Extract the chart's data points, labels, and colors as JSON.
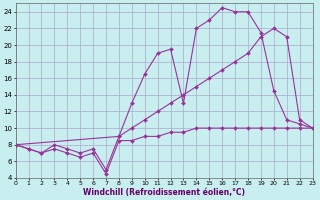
{
  "xlabel": "Windchill (Refroidissement éolien,°C)",
  "bg_color": "#c8eef0",
  "grid_color": "#aaaacc",
  "line_color": "#993399",
  "xlim": [
    0,
    23
  ],
  "ylim": [
    4,
    25
  ],
  "xticks": [
    0,
    1,
    2,
    3,
    4,
    5,
    6,
    7,
    8,
    9,
    10,
    11,
    12,
    13,
    14,
    15,
    16,
    17,
    18,
    19,
    20,
    21,
    22,
    23
  ],
  "yticks": [
    4,
    6,
    8,
    10,
    12,
    14,
    16,
    18,
    20,
    22,
    24
  ],
  "series1_x": [
    0,
    1,
    2,
    3,
    4,
    5,
    6,
    7,
    8,
    9,
    10,
    11,
    12,
    13,
    14,
    15,
    16,
    17,
    18,
    19,
    20,
    21,
    22,
    23
  ],
  "series1_y": [
    8,
    7.5,
    7,
    7.5,
    7,
    6.5,
    7,
    4.5,
    8.5,
    8.5,
    9,
    9,
    9.5,
    9.5,
    10,
    10,
    10,
    10,
    10,
    10,
    10,
    10,
    10,
    10
  ],
  "series2_x": [
    0,
    1,
    2,
    3,
    4,
    5,
    6,
    7,
    8,
    9,
    10,
    11,
    12,
    13,
    14,
    15,
    16,
    17,
    18,
    19,
    20,
    21,
    22,
    23
  ],
  "series2_y": [
    8,
    7.5,
    7,
    8,
    7.5,
    7,
    7.5,
    5,
    9,
    13,
    16.5,
    19,
    19.5,
    13,
    22,
    23,
    24.5,
    24,
    24,
    21.5,
    14.5,
    11,
    10.5,
    10
  ],
  "series3_x": [
    0,
    8,
    9,
    10,
    11,
    12,
    13,
    14,
    15,
    16,
    17,
    18,
    19,
    20,
    21,
    22,
    23
  ],
  "series3_y": [
    8,
    9,
    10,
    11,
    12,
    13,
    14,
    15,
    16,
    17,
    18,
    19,
    21,
    22,
    21,
    11,
    10
  ]
}
